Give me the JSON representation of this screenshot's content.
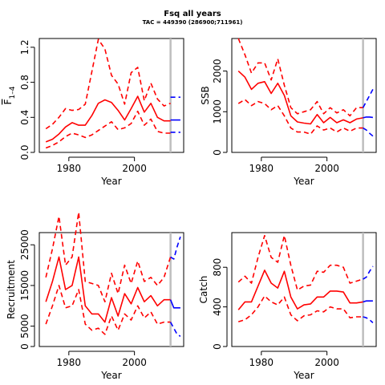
{
  "page": {
    "title": "Fsq all years",
    "subtitle": "TAC = 449390 (286900;711961)"
  },
  "colors": {
    "historic": "#ff0000",
    "projection": "#0000ff",
    "divider": "#bebebe",
    "axis": "#000000"
  },
  "chart_data": [
    {
      "id": "fbar",
      "type": "line",
      "xlabel": "Year",
      "ylabel_main": "F",
      "ylabel_sub": "1–4",
      "xlim": [
        1971,
        2015
      ],
      "ylim": [
        0,
        1.3
      ],
      "xticks": [
        1980,
        2000
      ],
      "yticks": [
        0.0,
        0.4,
        0.8,
        1.2
      ],
      "ytick_labels": [
        "0.0",
        "0.4",
        "0.8",
        "1.2"
      ],
      "divider_x": 2011,
      "x": [
        1973,
        1975,
        1977,
        1979,
        1981,
        1983,
        1985,
        1987,
        1989,
        1991,
        1993,
        1995,
        1997,
        1999,
        2001,
        2003,
        2005,
        2007,
        2009,
        2011
      ],
      "series": [
        {
          "role": "median",
          "values": [
            0.12,
            0.15,
            0.21,
            0.29,
            0.34,
            0.31,
            0.31,
            0.42,
            0.56,
            0.6,
            0.57,
            0.48,
            0.37,
            0.5,
            0.64,
            0.46,
            0.56,
            0.4,
            0.36,
            0.36
          ]
        },
        {
          "role": "upper",
          "values": [
            0.27,
            0.32,
            0.4,
            0.5,
            0.48,
            0.49,
            0.55,
            0.92,
            1.29,
            1.18,
            0.88,
            0.78,
            0.55,
            0.91,
            0.97,
            0.59,
            0.79,
            0.61,
            0.53,
            0.56
          ]
        },
        {
          "role": "lower",
          "values": [
            0.05,
            0.08,
            0.12,
            0.18,
            0.22,
            0.2,
            0.17,
            0.2,
            0.25,
            0.3,
            0.35,
            0.26,
            0.28,
            0.33,
            0.47,
            0.31,
            0.38,
            0.24,
            0.22,
            0.22
          ]
        }
      ],
      "projection": {
        "x": [
          2011,
          2014
        ],
        "median": [
          0.37,
          0.37
        ],
        "upper": [
          0.63,
          0.63
        ],
        "lower": [
          0.23,
          0.23
        ]
      }
    },
    {
      "id": "ssb",
      "type": "line",
      "xlabel": "Year",
      "ylabel": "SSB",
      "xlim": [
        1971,
        2015
      ],
      "ylim": [
        0,
        2800
      ],
      "xticks": [
        1980,
        2000
      ],
      "yticks": [
        0,
        1000,
        2000
      ],
      "ytick_labels": [
        "0",
        "1000",
        "2000"
      ],
      "divider_x": 2011,
      "x": [
        1973,
        1975,
        1977,
        1979,
        1981,
        1983,
        1985,
        1987,
        1989,
        1991,
        1993,
        1995,
        1997,
        1999,
        2001,
        2003,
        2005,
        2007,
        2009,
        2011
      ],
      "series": [
        {
          "role": "median",
          "values": [
            2000,
            1850,
            1550,
            1700,
            1740,
            1450,
            1700,
            1400,
            900,
            750,
            720,
            700,
            930,
            730,
            860,
            730,
            800,
            730,
            820,
            850
          ]
        },
        {
          "role": "upper",
          "values": [
            2800,
            2400,
            1950,
            2200,
            2200,
            1780,
            2300,
            1650,
            1100,
            950,
            1000,
            1050,
            1250,
            950,
            1100,
            970,
            1050,
            900,
            1100,
            1100
          ]
        },
        {
          "role": "lower",
          "values": [
            1200,
            1300,
            1150,
            1250,
            1200,
            1050,
            1150,
            900,
            600,
            500,
            500,
            450,
            650,
            550,
            600,
            500,
            600,
            520,
            600,
            600
          ]
        }
      ],
      "projection": {
        "x": [
          2011,
          2012,
          2013,
          2014
        ],
        "median": [
          850,
          870,
          870,
          860
        ],
        "upper": [
          1100,
          1250,
          1400,
          1550
        ],
        "lower": [
          600,
          550,
          470,
          400
        ]
      }
    },
    {
      "id": "recruitment",
      "type": "line",
      "xlabel": "Year",
      "ylabel": "Recruitment",
      "xlim": [
        1971,
        2015
      ],
      "ylim": [
        0,
        28000
      ],
      "xticks": [
        1980,
        2000
      ],
      "yticks": [
        0,
        5000,
        15000,
        25000
      ],
      "ytick_labels": [
        "0",
        "5000",
        "15000",
        "25000"
      ],
      "divider_x": 2011,
      "x": [
        1973,
        1975,
        1977,
        1979,
        1981,
        1983,
        1985,
        1987,
        1989,
        1991,
        1993,
        1995,
        1997,
        1999,
        2001,
        2003,
        2005,
        2007,
        2009,
        2011
      ],
      "series": [
        {
          "role": "median",
          "values": [
            11000,
            16000,
            22000,
            14000,
            15000,
            22000,
            10000,
            8000,
            8000,
            6000,
            12000,
            7500,
            13000,
            10500,
            14500,
            11000,
            12500,
            10000,
            11500,
            11500
          ]
        },
        {
          "role": "upper",
          "values": [
            17000,
            24000,
            32000,
            20000,
            22000,
            33000,
            16000,
            15500,
            15000,
            11000,
            18000,
            13000,
            20000,
            15500,
            21000,
            16000,
            17000,
            15000,
            17000,
            22000
          ]
        },
        {
          "role": "lower",
          "values": [
            5500,
            10000,
            15000,
            9500,
            10000,
            14000,
            5500,
            4000,
            4500,
            3000,
            7500,
            4000,
            8000,
            6500,
            10000,
            7000,
            8500,
            5500,
            6000,
            6000
          ]
        }
      ],
      "projection": {
        "x": [
          2011,
          2012,
          2013,
          2014
        ],
        "median": [
          11500,
          9500,
          9500,
          9500
        ],
        "upper": [
          22000,
          21500,
          24500,
          27000
        ],
        "lower": [
          6000,
          4500,
          3000,
          2500
        ]
      }
    },
    {
      "id": "catch",
      "type": "line",
      "xlabel": "Year",
      "ylabel": "Catch",
      "xlim": [
        1971,
        2015
      ],
      "ylim": [
        0,
        1150
      ],
      "xticks": [
        1980,
        2000
      ],
      "yticks": [
        0,
        400,
        800
      ],
      "ytick_labels": [
        "0",
        "400",
        "800"
      ],
      "divider_x": 2011,
      "x": [
        1973,
        1975,
        1977,
        1979,
        1981,
        1983,
        1985,
        1987,
        1989,
        1991,
        1993,
        1995,
        1997,
        1999,
        2001,
        2003,
        2005,
        2007,
        2009,
        2011
      ],
      "series": [
        {
          "role": "median",
          "values": [
            370,
            450,
            450,
            610,
            770,
            640,
            590,
            760,
            500,
            380,
            420,
            430,
            500,
            500,
            560,
            560,
            550,
            440,
            440,
            450
          ]
        },
        {
          "role": "upper",
          "values": [
            650,
            710,
            640,
            900,
            1120,
            900,
            850,
            1120,
            820,
            570,
            610,
            620,
            760,
            750,
            820,
            820,
            800,
            640,
            660,
            680
          ]
        },
        {
          "role": "lower",
          "values": [
            250,
            270,
            320,
            400,
            510,
            450,
            420,
            500,
            320,
            260,
            310,
            320,
            360,
            350,
            400,
            380,
            380,
            290,
            300,
            300
          ]
        }
      ],
      "projection": {
        "x": [
          2011,
          2012,
          2013,
          2014
        ],
        "median": [
          450,
          460,
          460,
          460
        ],
        "upper": [
          680,
          700,
          760,
          810
        ],
        "lower": [
          300,
          290,
          270,
          240
        ]
      }
    }
  ]
}
